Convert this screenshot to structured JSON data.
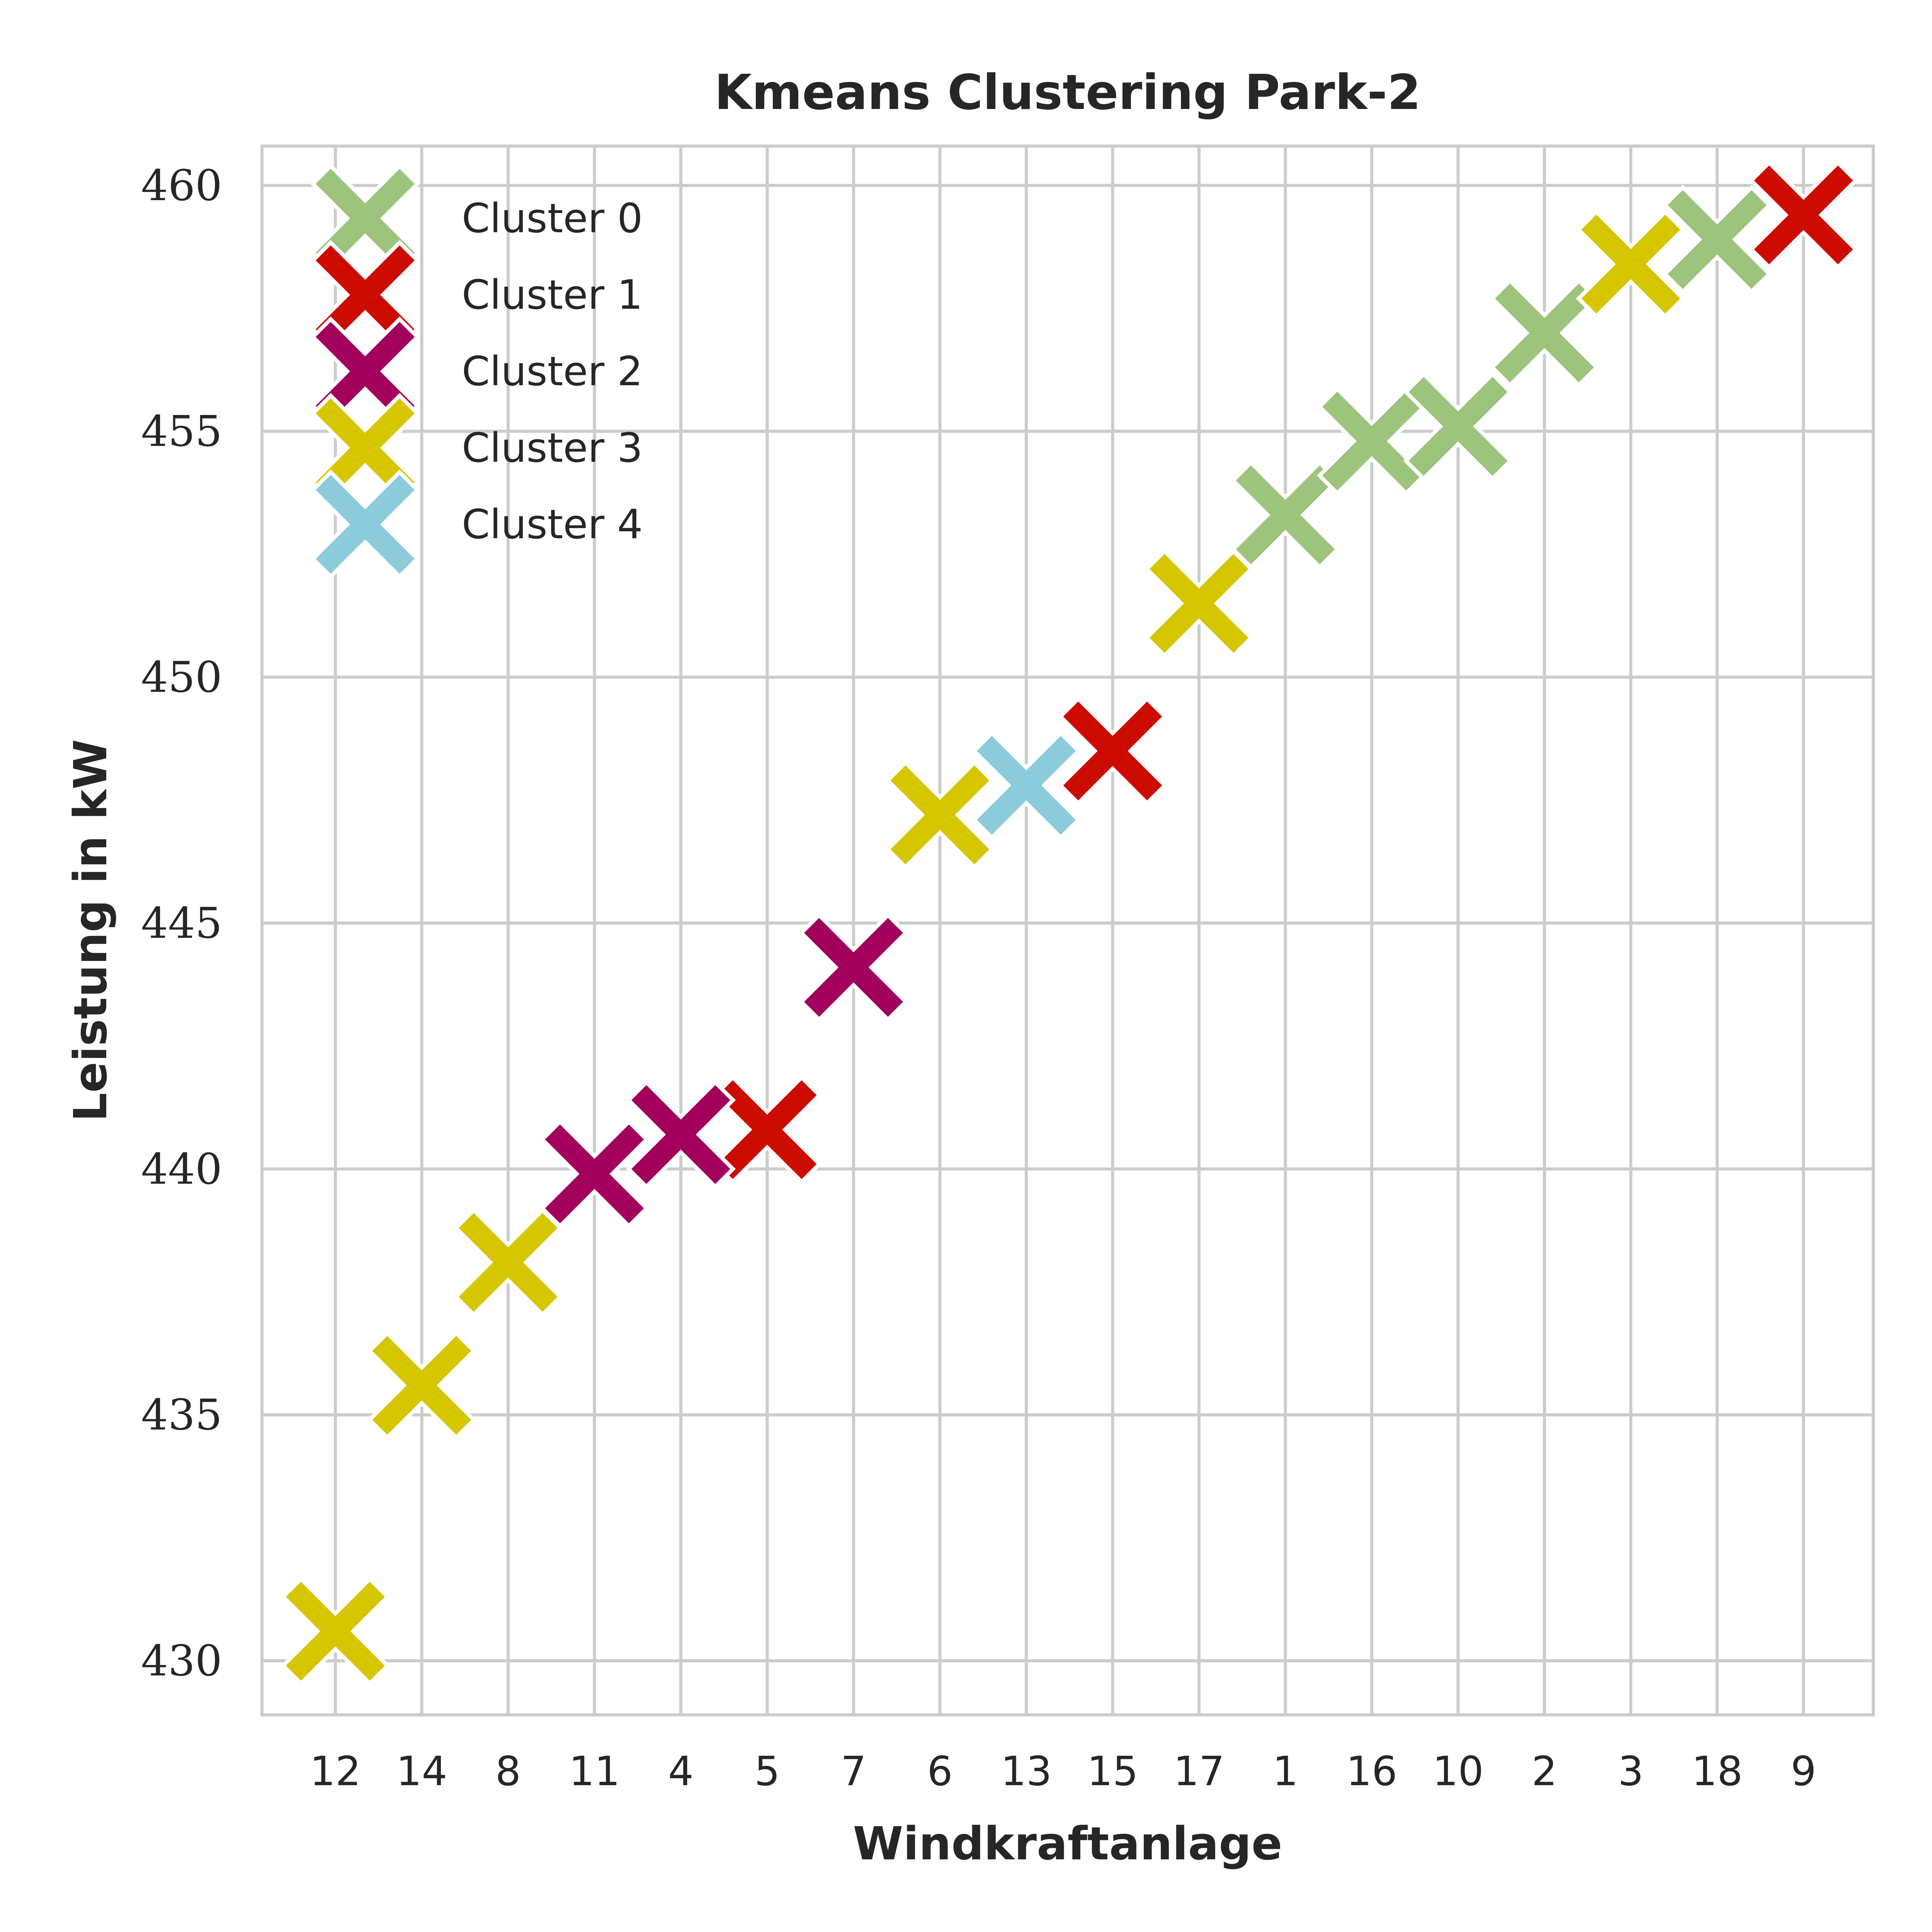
{
  "chart_data": {
    "type": "scatter",
    "title": "Kmeans Clustering Park-2",
    "xlabel": "Windkraftanlage",
    "ylabel": "Leistung in kW",
    "categories": [
      "12",
      "14",
      "8",
      "11",
      "4",
      "5",
      "7",
      "6",
      "13",
      "15",
      "17",
      "1",
      "16",
      "10",
      "2",
      "3",
      "18",
      "9"
    ],
    "ylim": [
      428.9,
      460.8
    ],
    "yticks": [
      430,
      435,
      440,
      445,
      450,
      455,
      460
    ],
    "grid": true,
    "legend_position": "top-left",
    "marker": "X",
    "series": [
      {
        "name": "Cluster 0",
        "color": "#9dc47c",
        "points": [
          {
            "x": "1",
            "y": 453.3
          },
          {
            "x": "16",
            "y": 454.8
          },
          {
            "x": "10",
            "y": 455.1
          },
          {
            "x": "2",
            "y": 457.0
          },
          {
            "x": "18",
            "y": 458.9
          }
        ]
      },
      {
        "name": "Cluster 1",
        "color": "#cc0c00",
        "points": [
          {
            "x": "5",
            "y": 440.8
          },
          {
            "x": "15",
            "y": 448.5
          },
          {
            "x": "9",
            "y": 459.4
          }
        ]
      },
      {
        "name": "Cluster 2",
        "color": "#a2005c",
        "points": [
          {
            "x": "11",
            "y": 439.9
          },
          {
            "x": "4",
            "y": 440.7
          },
          {
            "x": "7",
            "y": 444.1
          }
        ]
      },
      {
        "name": "Cluster 3",
        "color": "#d6c600",
        "points": [
          {
            "x": "12",
            "y": 430.6
          },
          {
            "x": "14",
            "y": 435.6
          },
          {
            "x": "8",
            "y": 438.1
          },
          {
            "x": "6",
            "y": 447.2
          },
          {
            "x": "17",
            "y": 451.5
          },
          {
            "x": "3",
            "y": 458.4
          }
        ]
      },
      {
        "name": "Cluster 4",
        "color": "#8ccbdb",
        "points": [
          {
            "x": "13",
            "y": 447.8
          }
        ]
      }
    ]
  }
}
